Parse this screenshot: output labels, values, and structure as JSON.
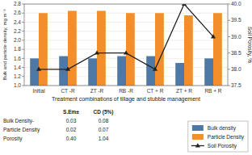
{
  "chart_data": {
    "type": "bar",
    "categories": [
      "Initial",
      "CT -R",
      "ZT -R",
      "RB -R",
      "CT + R",
      "ZT + R",
      "RB + R"
    ],
    "series": [
      {
        "name": "Bulk density",
        "type": "bar",
        "color": "#4e79a7",
        "values": [
          1.6,
          1.65,
          1.6,
          1.65,
          1.65,
          1.5,
          1.6
        ]
      },
      {
        "name": "Particle Density",
        "type": "bar",
        "color": "#f28e2b",
        "values": [
          2.6,
          2.65,
          2.65,
          2.6,
          2.6,
          2.55,
          2.6
        ]
      },
      {
        "name": "Soil Porosity",
        "type": "line",
        "axis": "y2",
        "color": "#222222",
        "marker": "triangle",
        "line_style": "solid",
        "values": [
          38.0,
          38.0,
          38.5,
          38.5,
          38.0,
          40.0,
          39.0
        ]
      }
    ],
    "xlabel": "Treatment combinations of tillage and stubble management",
    "ylabel": "Bulk and particle density, mg m⁻³",
    "y2label": "Soil Porosity, %",
    "ylim": [
      1.0,
      2.8
    ],
    "yticks": [
      {
        "value": 1.0,
        "label": "1.0"
      },
      1.2,
      1.4,
      1.6,
      1.8,
      {
        "value": 2.0,
        "label": "2.0"
      },
      2.2,
      2.4,
      2.6,
      2.8
    ],
    "y2lim": [
      37.5,
      40.0
    ],
    "y2ticks": [
      37.5,
      {
        "value": 38.0,
        "label": "38.0"
      },
      38.5,
      {
        "value": 39.0,
        "label": "39.0"
      },
      39.5,
      {
        "value": 40.0,
        "label": "40.0"
      }
    ],
    "grid": true,
    "legend": "lower right",
    "table": {
      "header": [
        "S.Em±",
        "CD (5%)"
      ],
      "rows": [
        [
          "Bulk Density-",
          "0.03",
          "0.08"
        ],
        [
          "Particle Density",
          "0.02",
          "0.07"
        ],
        [
          "Porosity",
          "0.40",
          "1.04"
        ]
      ]
    }
  }
}
